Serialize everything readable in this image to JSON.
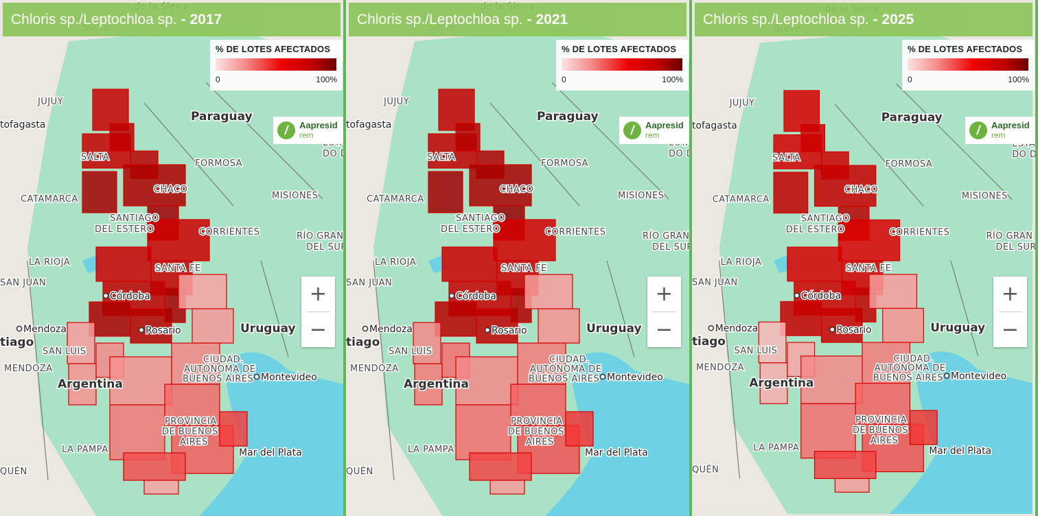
{
  "species_title": "Chloris sp./Leptochloa sp.",
  "panels": [
    {
      "year_label": "- 2017"
    },
    {
      "year_label": "- 2021"
    },
    {
      "year_label": "- 2025"
    }
  ],
  "legend": {
    "title": "% DE LOTES AFECTADOS",
    "min_label": "0",
    "max_label": "100%",
    "colors": [
      "#fde3e3",
      "#f58a8a",
      "#ee0000",
      "#c00000",
      "#6b0000"
    ]
  },
  "logo": {
    "name": "Aapresid",
    "sub": "rem"
  },
  "zoom": {
    "in": "+",
    "out": "−"
  },
  "map_labels": {
    "de_la_sierra": "de la Sierra",
    "sucre": "Sucre",
    "jujuy": "JUJUY",
    "antofagasta": "tofagasta",
    "paraguay": "Paraguay",
    "salta": "SALTA",
    "formosa": "FORMOSA",
    "chaco": "CHACO",
    "estado1": "ESTA",
    "estado2": "DO D",
    "catamarca": "CATAMARCA",
    "misiones": "MISIONES",
    "santiago1": "SANTIAGO",
    "santiago2": "DEL ESTERO",
    "corrientes": "CORRIENTES",
    "rio_grande1": "RÍO GRAN",
    "rio_grande2": "DEL SUR",
    "la_rioja": "LA RIOJA",
    "santa_fe": "SANTA FE",
    "san_juan": "SAN JUAN",
    "cordoba": "Córdoba",
    "uruguay": "Uruguay",
    "mendoza_city": "Mendoza",
    "rosario": "Rosario",
    "santiago_chile": "tiago",
    "san_luis": "SAN LUIS",
    "ciudad1": "CIUDAD.",
    "ciudad2": "AUTÓNOMA DE",
    "ciudad3": "BUENOS AIRES",
    "mendoza": "MENDOZA",
    "argentina": "Argentina",
    "montevideo": "Montevideo",
    "prov1": "PROVINCIA",
    "prov2": "DE BUENOS",
    "prov3": "AIRES",
    "la_pampa": "LA PAMPA",
    "mar_del_plata": "Mar del Plata",
    "neuquen": "QUÉN"
  },
  "map_colors": {
    "land": "#eae8e0",
    "green": "#9fe0c0",
    "water": "#6fd2e4",
    "border": "#7a7a7a"
  },
  "affected_levels": {
    "2017": {
      "north": 0.8,
      "center": 0.78,
      "south": 0.28,
      "west": 0.3
    },
    "2021": {
      "north": 0.82,
      "center": 0.75,
      "south": 0.3,
      "west": 0.35
    },
    "2025": {
      "north": 0.72,
      "center": 0.7,
      "south": 0.3,
      "west": 0.22
    }
  }
}
